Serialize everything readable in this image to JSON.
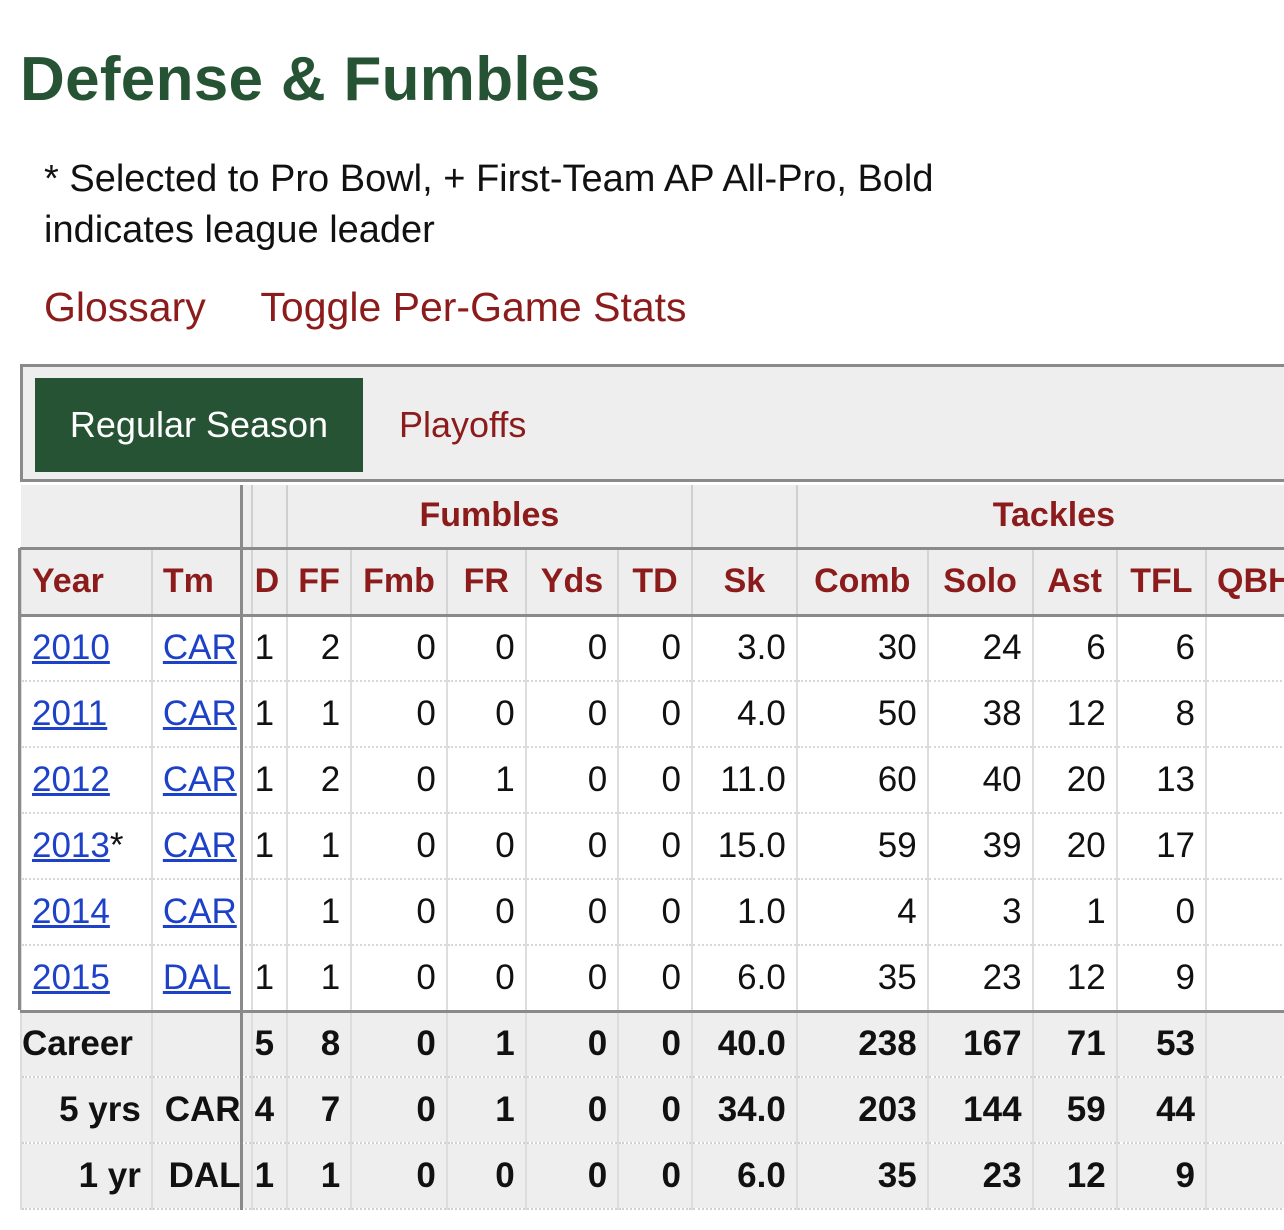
{
  "title": "Defense & Fumbles",
  "legend": "* Selected to Pro Bowl, + First-Team AP All-Pro, Bold indicates league leader",
  "links": {
    "glossary": "Glossary",
    "toggle": "Toggle Per-Game Stats"
  },
  "tabs": {
    "active": "Regular Season",
    "other": "Playoffs"
  },
  "groups": {
    "fumbles": "Fumbles",
    "tackles": "Tackles"
  },
  "headers": [
    "Year",
    "Tm",
    "D",
    "FF",
    "Fmb",
    "FR",
    "Yds",
    "TD",
    "Sk",
    "Comb",
    "Solo",
    "Ast",
    "TFL",
    "QBHi"
  ],
  "rows": [
    {
      "year": "2010",
      "mark": "",
      "team": "CAR",
      "d": "1",
      "ff": "2",
      "fmb": "0",
      "fr": "0",
      "yds": "0",
      "td": "0",
      "sk": "3.0",
      "comb": "30",
      "solo": "24",
      "ast": "6",
      "tfl": "6",
      "qbhi": ""
    },
    {
      "year": "2011",
      "mark": "",
      "team": "CAR",
      "d": "1",
      "ff": "1",
      "fmb": "0",
      "fr": "0",
      "yds": "0",
      "td": "0",
      "sk": "4.0",
      "comb": "50",
      "solo": "38",
      "ast": "12",
      "tfl": "8",
      "qbhi": ""
    },
    {
      "year": "2012",
      "mark": "",
      "team": "CAR",
      "d": "1",
      "ff": "2",
      "fmb": "0",
      "fr": "1",
      "yds": "0",
      "td": "0",
      "sk": "11.0",
      "comb": "60",
      "solo": "40",
      "ast": "20",
      "tfl": "13",
      "qbhi": ""
    },
    {
      "year": "2013",
      "mark": "*",
      "team": "CAR",
      "d": "1",
      "ff": "1",
      "fmb": "0",
      "fr": "0",
      "yds": "0",
      "td": "0",
      "sk": "15.0",
      "comb": "59",
      "solo": "39",
      "ast": "20",
      "tfl": "17",
      "qbhi": ""
    },
    {
      "year": "2014",
      "mark": "",
      "team": "CAR",
      "d": "",
      "ff": "1",
      "fmb": "0",
      "fr": "0",
      "yds": "0",
      "td": "0",
      "sk": "1.0",
      "comb": "4",
      "solo": "3",
      "ast": "1",
      "tfl": "0",
      "qbhi": ""
    },
    {
      "year": "2015",
      "mark": "",
      "team": "DAL",
      "d": "1",
      "ff": "1",
      "fmb": "0",
      "fr": "0",
      "yds": "0",
      "td": "0",
      "sk": "6.0",
      "comb": "35",
      "solo": "23",
      "ast": "12",
      "tfl": "9",
      "qbhi": ""
    }
  ],
  "summary": [
    {
      "label": "Career",
      "team": "",
      "d": "5",
      "ff": "8",
      "fmb": "0",
      "fr": "1",
      "yds": "0",
      "td": "0",
      "sk": "40.0",
      "comb": "238",
      "solo": "167",
      "ast": "71",
      "tfl": "53",
      "qbhi": ""
    },
    {
      "label": "5 yrs",
      "team": "CAR",
      "d": "4",
      "ff": "7",
      "fmb": "0",
      "fr": "1",
      "yds": "0",
      "td": "0",
      "sk": "34.0",
      "comb": "203",
      "solo": "144",
      "ast": "59",
      "tfl": "44",
      "qbhi": ""
    },
    {
      "label": "1 yr",
      "team": "DAL",
      "d": "1",
      "ff": "1",
      "fmb": "0",
      "fr": "0",
      "yds": "0",
      "td": "0",
      "sk": "6.0",
      "comb": "35",
      "solo": "23",
      "ast": "12",
      "tfl": "9",
      "qbhi": ""
    }
  ],
  "colors": {
    "heading_green": "#255333",
    "link_red": "#8c1b1b",
    "link_blue": "#1d41c8",
    "header_bg": "#eeeeee"
  }
}
